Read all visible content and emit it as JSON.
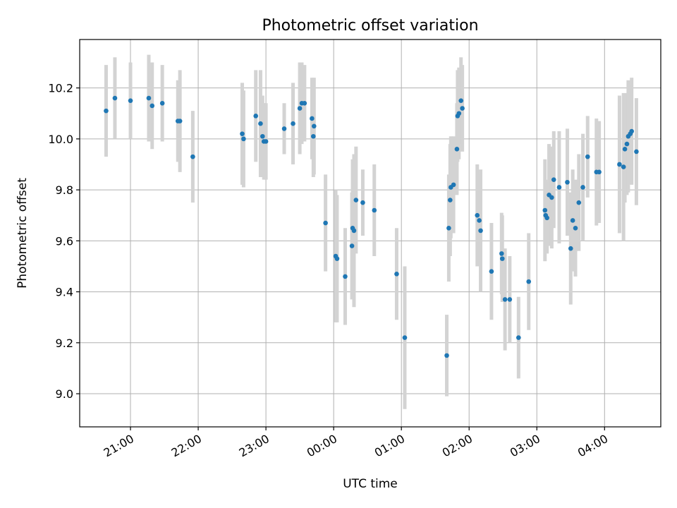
{
  "chart_data": {
    "type": "scatter",
    "title": "Photometric offset variation",
    "xlabel": "UTC time",
    "ylabel": "Photometric offset",
    "x_unit": "UTC time (hours after 00:00; negative values are on the previous evening)",
    "xlim": [
      -3.75,
      4.83
    ],
    "ylim": [
      8.87,
      10.39
    ],
    "x_ticks": [
      {
        "value": -3,
        "label": "21:00"
      },
      {
        "value": -2,
        "label": "22:00"
      },
      {
        "value": -1,
        "label": "23:00"
      },
      {
        "value": 0,
        "label": "00:00"
      },
      {
        "value": 1,
        "label": "01:00"
      },
      {
        "value": 2,
        "label": "02:00"
      },
      {
        "value": 3,
        "label": "03:00"
      },
      {
        "value": 4,
        "label": "04:00"
      }
    ],
    "y_ticks": [
      {
        "value": 9.0,
        "label": "9.0"
      },
      {
        "value": 9.2,
        "label": "9.2"
      },
      {
        "value": 9.4,
        "label": "9.4"
      },
      {
        "value": 9.6,
        "label": "9.6"
      },
      {
        "value": 9.8,
        "label": "9.8"
      },
      {
        "value": 10.0,
        "label": "10.0"
      },
      {
        "value": 10.2,
        "label": "10.2"
      }
    ],
    "grid": true,
    "legend": "none",
    "marker_color": "#1f77b4",
    "errorbar_color": "#d3d3d3",
    "series": [
      {
        "x": [
          -3.36,
          -3.23,
          -3.0,
          -2.73,
          -2.68,
          -2.53,
          -2.3,
          -2.27,
          -2.08,
          -1.35,
          -1.33,
          -1.15,
          -1.08,
          -1.05,
          -1.03,
          -1.0,
          -0.73,
          -0.6,
          -0.5,
          -0.47,
          -0.43,
          -0.32,
          -0.3,
          -0.29,
          -0.12,
          0.03,
          0.05,
          0.17,
          0.27,
          0.28,
          0.3,
          0.33,
          0.43,
          0.6,
          0.93,
          1.05,
          1.67,
          1.7,
          1.72,
          1.73,
          1.77,
          1.82,
          1.83,
          1.85,
          1.88,
          1.9,
          2.12,
          2.15,
          2.17,
          2.33,
          2.48,
          2.49,
          2.53,
          2.6,
          2.73,
          2.88,
          3.12,
          3.13,
          3.15,
          3.18,
          3.22,
          3.25,
          3.33,
          3.45,
          3.5,
          3.53,
          3.57,
          3.62,
          3.68,
          3.75,
          3.88,
          3.92,
          4.22,
          4.28,
          4.3,
          4.33,
          4.35,
          4.38,
          4.4,
          4.47
        ],
        "y": [
          10.11,
          10.16,
          10.15,
          10.16,
          10.13,
          10.14,
          10.07,
          10.07,
          9.93,
          10.02,
          10.0,
          10.09,
          10.06,
          10.01,
          9.99,
          9.99,
          10.04,
          10.06,
          10.12,
          10.14,
          10.14,
          10.08,
          10.01,
          10.05,
          9.67,
          9.54,
          9.53,
          9.46,
          9.58,
          9.65,
          9.64,
          9.76,
          9.75,
          9.72,
          9.47,
          9.22,
          9.15,
          9.65,
          9.76,
          9.81,
          9.82,
          9.96,
          10.09,
          10.1,
          10.15,
          10.12,
          9.7,
          9.68,
          9.64,
          9.48,
          9.55,
          9.53,
          9.37,
          9.37,
          9.22,
          9.44,
          9.72,
          9.7,
          9.69,
          9.78,
          9.77,
          9.84,
          9.81,
          9.83,
          9.57,
          9.68,
          9.65,
          9.75,
          9.81,
          9.93,
          9.87,
          9.87,
          9.9,
          9.89,
          9.96,
          9.98,
          10.01,
          10.02,
          10.03,
          9.95
        ],
        "err": [
          0.18,
          0.16,
          0.15,
          0.17,
          0.17,
          0.15,
          0.16,
          0.2,
          0.18,
          0.2,
          0.19,
          0.18,
          0.21,
          0.16,
          0.15,
          0.15,
          0.1,
          0.16,
          0.18,
          0.16,
          0.15,
          0.16,
          0.16,
          0.19,
          0.19,
          0.26,
          0.25,
          0.19,
          0.21,
          0.27,
          0.3,
          0.21,
          0.13,
          0.18,
          0.18,
          0.28,
          0.16,
          0.21,
          0.22,
          0.2,
          0.19,
          0.18,
          0.18,
          0.18,
          0.17,
          0.17,
          0.2,
          0.18,
          0.24,
          0.19,
          0.16,
          0.17,
          0.2,
          0.17,
          0.16,
          0.19,
          0.2,
          0.14,
          0.14,
          0.2,
          0.2,
          0.19,
          0.22,
          0.21,
          0.22,
          0.2,
          0.19,
          0.19,
          0.21,
          0.16,
          0.21,
          0.2,
          0.27,
          0.29,
          0.21,
          0.2,
          0.22,
          0.19,
          0.21,
          0.21
        ]
      }
    ]
  }
}
